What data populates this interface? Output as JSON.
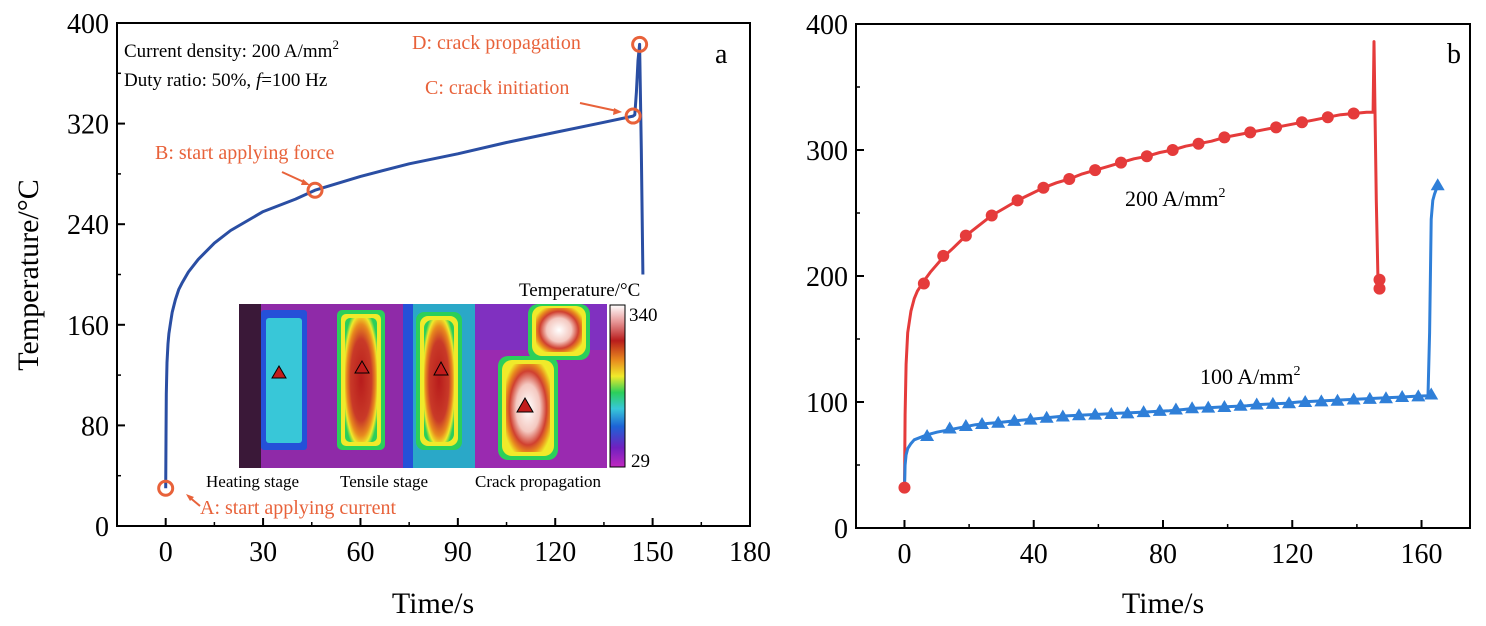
{
  "chart_data": [
    {
      "panel": "a",
      "type": "line",
      "xlabel": "Time/s",
      "ylabel": "Temperature/°C",
      "xlim": [
        -15,
        180
      ],
      "ylim": [
        0,
        400
      ],
      "xticks": [
        0,
        30,
        60,
        90,
        120,
        150,
        180
      ],
      "yticks": [
        0,
        80,
        160,
        240,
        320,
        400
      ],
      "colors": {
        "line": "#2a4ea3",
        "annotation": "#e8623a",
        "axis": "#000000"
      },
      "info_lines": [
        "Current density: 200 A/mm",
        "Duty ratio: 50%, ",
        "f",
        "=100 Hz"
      ],
      "info_superscript": "2",
      "series": [
        {
          "x": [
            0,
            0.1,
            0.2,
            0.4,
            0.7,
            1,
            1.5,
            2,
            3,
            4,
            5,
            7,
            10,
            15,
            20,
            30,
            40,
            46,
            60,
            75,
            90,
            105,
            120,
            135,
            144,
            144.5,
            145,
            145.5,
            146,
            146.5,
            147
          ],
          "y": [
            30,
            70,
            105,
            130,
            145,
            153,
            162,
            170,
            180,
            188,
            193,
            202,
            212,
            225,
            235,
            250,
            260,
            267,
            278,
            288,
            296,
            305,
            313,
            321,
            326,
            327,
            345,
            370,
            383,
            300,
            200
          ]
        }
      ],
      "points": [
        {
          "x": 0,
          "y": 30,
          "label": "A: start applying current"
        },
        {
          "x": 46,
          "y": 267,
          "label": "B: start applying force"
        },
        {
          "x": 144,
          "y": 326,
          "label": "C: crack initiation"
        },
        {
          "x": 146,
          "y": 383,
          "label": "D: crack propagation"
        }
      ],
      "inset": {
        "colorbar_title": "Temperature/°C",
        "colorbar_max": "340",
        "colorbar_min": "29",
        "stages": [
          "Heating stage",
          "Tensile stage",
          "Crack propagation"
        ]
      }
    },
    {
      "panel": "b",
      "type": "line",
      "xlabel": "Time/s",
      "ylabel": "",
      "xlim": [
        -15,
        175
      ],
      "ylim": [
        0,
        400
      ],
      "xticks": [
        0,
        40,
        80,
        120,
        160
      ],
      "yticks": [
        0,
        100,
        200,
        300,
        400
      ],
      "series": [
        {
          "name": "200 A/mm",
          "superscript": "2",
          "color": "#e53b3b",
          "marker": "circle",
          "x": [
            0,
            0.2,
            0.5,
            1,
            2,
            3,
            4,
            6,
            8,
            10,
            12,
            15,
            19,
            23,
            27,
            31,
            35,
            39,
            43,
            47,
            51,
            55,
            59,
            63,
            67,
            71,
            75,
            79,
            83,
            87,
            91,
            95,
            99,
            103,
            107,
            111,
            115,
            119,
            123,
            127,
            131,
            135,
            139,
            143,
            145,
            145.3,
            145.6,
            146,
            146.5,
            147
          ],
          "y": [
            32,
            90,
            130,
            155,
            172,
            182,
            188,
            196,
            203,
            209,
            215,
            222,
            232,
            240,
            248,
            254,
            260,
            265,
            270,
            274,
            277,
            281,
            284,
            287,
            290,
            293,
            295,
            298,
            300,
            303,
            305,
            307,
            310,
            312,
            314,
            316,
            318,
            320,
            322,
            324,
            326,
            328,
            329,
            330,
            330,
            386,
            330,
            260,
            200,
            190
          ],
          "markers_x": [
            0,
            6,
            12,
            19,
            27,
            35,
            43,
            51,
            59,
            67,
            75,
            83,
            91,
            99,
            107,
            115,
            123,
            131,
            139,
            147,
            147
          ],
          "markers_y": [
            32,
            194,
            216,
            232,
            248,
            260,
            270,
            277,
            284,
            290,
            295,
            300,
            305,
            310,
            314,
            318,
            322,
            326,
            329,
            197,
            190
          ]
        },
        {
          "name": "100 A/mm",
          "superscript": "2",
          "color": "#2f7fd8",
          "marker": "triangle",
          "x": [
            0,
            0.2,
            0.5,
            1,
            2,
            3,
            5,
            7,
            10,
            14,
            18,
            22,
            26,
            30,
            34,
            38,
            42,
            46,
            50,
            54,
            58,
            62,
            66,
            70,
            74,
            78,
            82,
            86,
            90,
            94,
            98,
            102,
            106,
            110,
            114,
            118,
            122,
            126,
            130,
            134,
            138,
            142,
            146,
            150,
            154,
            158,
            162,
            162.5,
            163,
            163.5,
            164,
            165
          ],
          "y": [
            32,
            50,
            58,
            63,
            67,
            70,
            72,
            74,
            76,
            78,
            80,
            82,
            83,
            84,
            85,
            86,
            87,
            88,
            89,
            89.5,
            90,
            90.5,
            91,
            91.5,
            92,
            92.5,
            93,
            94,
            95,
            95.5,
            96,
            96.5,
            97,
            98,
            98.5,
            99,
            100,
            100.5,
            101,
            101.5,
            102,
            102.5,
            103,
            103.5,
            104,
            104.5,
            105,
            155,
            245,
            260,
            265,
            272
          ],
          "markers_x": [
            7,
            14,
            19,
            24,
            29,
            34,
            39,
            44,
            49,
            54,
            59,
            64,
            69,
            74,
            79,
            84,
            89,
            94,
            99,
            104,
            109,
            114,
            119,
            124,
            129,
            134,
            139,
            144,
            149,
            154,
            159,
            163,
            165
          ],
          "markers_y": [
            73,
            79,
            81,
            82.5,
            83.5,
            85,
            86,
            87.5,
            88.5,
            89.5,
            90,
            90.5,
            91,
            92,
            93,
            94,
            95,
            95.5,
            96,
            97,
            98,
            98.5,
            99,
            100,
            100.5,
            101,
            102,
            102.5,
            103,
            104,
            104.5,
            106,
            272
          ]
        }
      ]
    }
  ],
  "inset_colors": [
    "#8b2fb8",
    "#1d63d6",
    "#37c7d9",
    "#2bcf5a",
    "#f0ea2a",
    "#e88a1e",
    "#c81e1e",
    "#f4d0d0",
    "#ffffff"
  ]
}
